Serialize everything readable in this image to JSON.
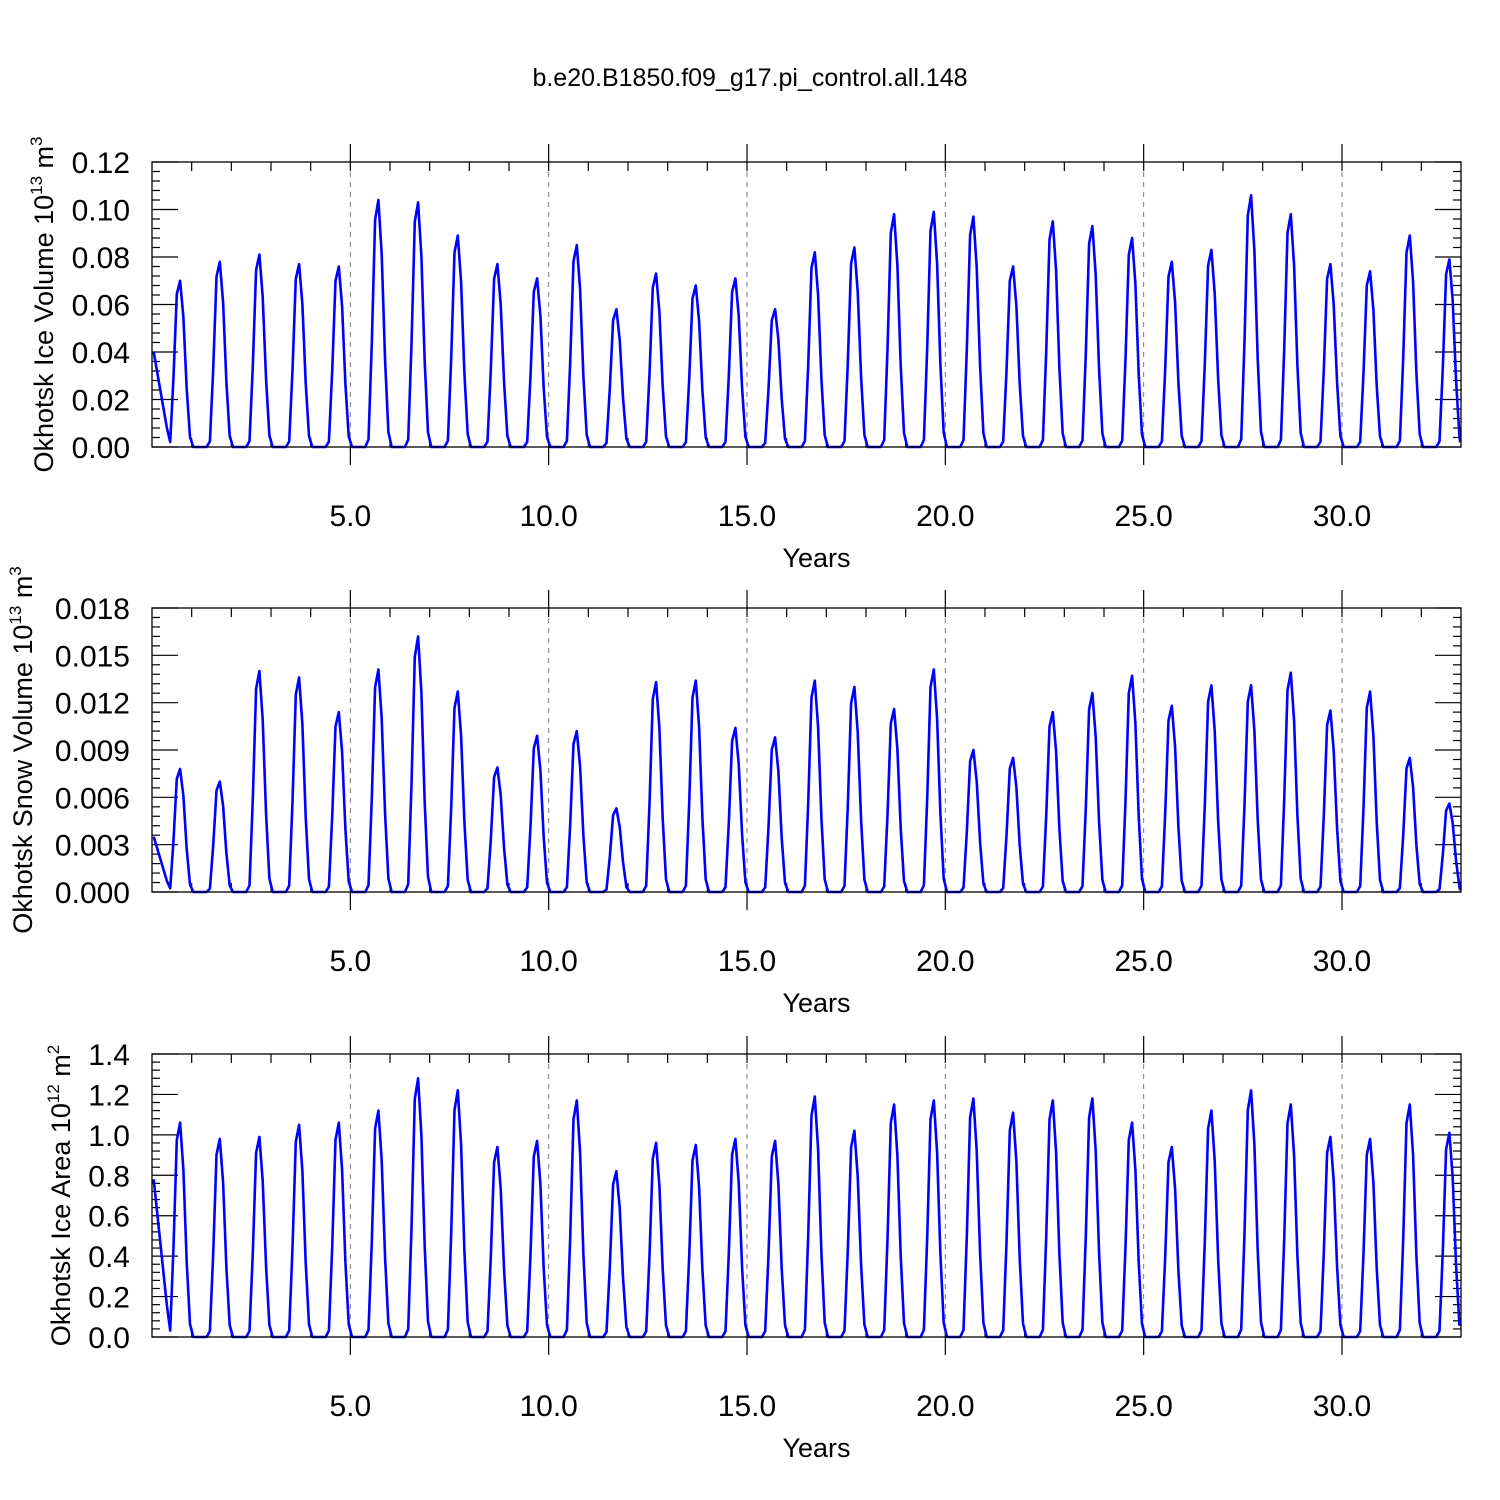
{
  "title": "b.e20.B1850.f09_g17.pi_control.all.148",
  "chart_data": [
    {
      "type": "line",
      "ylabel": "Okhotsk Ice Volume 10",
      "ylabel_exp": "13",
      "ylabel_unit": " m",
      "ylabel_unit_exp": "3",
      "xlabel": "Years",
      "xlim": [
        0.0,
        33.0
      ],
      "ylim": [
        0.0,
        0.12
      ],
      "xticks": [
        5.0,
        10.0,
        15.0,
        20.0,
        25.0,
        30.0
      ],
      "xtick_labels": [
        "5.0",
        "10.0",
        "15.0",
        "20.0",
        "25.0",
        "30.0"
      ],
      "yticks": [
        0.0,
        0.02,
        0.04,
        0.06,
        0.08,
        0.1,
        0.12
      ],
      "ytick_labels": [
        "0.00",
        "0.02",
        "0.04",
        "0.06",
        "0.08",
        "0.10",
        "0.12"
      ],
      "grid": "vertical dashed at labeled years",
      "series_color": "#0000ff",
      "annual_peaks": [
        0.07,
        0.078,
        0.081,
        0.077,
        0.076,
        0.104,
        0.103,
        0.089,
        0.077,
        0.071,
        0.085,
        0.058,
        0.073,
        0.068,
        0.071,
        0.058,
        0.082,
        0.084,
        0.098,
        0.099,
        0.097,
        0.076,
        0.095,
        0.093,
        0.088,
        0.078,
        0.083,
        0.106,
        0.098,
        0.077,
        0.074,
        0.089,
        0.079
      ],
      "start_value": 0.04,
      "end_value": 0.002
    },
    {
      "type": "line",
      "ylabel": "Okhotsk Snow Volume 10",
      "ylabel_exp": "13",
      "ylabel_unit": " m",
      "ylabel_unit_exp": "3",
      "xlabel": "Years",
      "xlim": [
        0.0,
        33.0
      ],
      "ylim": [
        0.0,
        0.018
      ],
      "xticks": [
        5.0,
        10.0,
        15.0,
        20.0,
        25.0,
        30.0
      ],
      "xtick_labels": [
        "5.0",
        "10.0",
        "15.0",
        "20.0",
        "25.0",
        "30.0"
      ],
      "yticks": [
        0.0,
        0.003,
        0.006,
        0.009,
        0.012,
        0.015,
        0.018
      ],
      "ytick_labels": [
        "0.000",
        "0.003",
        "0.006",
        "0.009",
        "0.012",
        "0.015",
        "0.018"
      ],
      "grid": "vertical dashed at labeled years",
      "series_color": "#0000ff",
      "annual_peaks": [
        0.0078,
        0.007,
        0.014,
        0.0136,
        0.0114,
        0.0141,
        0.0162,
        0.0127,
        0.0079,
        0.0099,
        0.0102,
        0.0053,
        0.0133,
        0.0134,
        0.0104,
        0.0098,
        0.0134,
        0.013,
        0.0116,
        0.0141,
        0.009,
        0.0085,
        0.0114,
        0.0126,
        0.0137,
        0.0118,
        0.0131,
        0.0131,
        0.0139,
        0.0115,
        0.0127,
        0.0085,
        0.0056
      ],
      "start_value": 0.0035,
      "end_value": 0.0001
    },
    {
      "type": "line",
      "ylabel": "Okhotsk Ice Area 10",
      "ylabel_exp": "12",
      "ylabel_unit": " m",
      "ylabel_unit_exp": "2",
      "xlabel": "Years",
      "xlim": [
        0.0,
        33.0
      ],
      "ylim": [
        0.0,
        1.4
      ],
      "xticks": [
        5.0,
        10.0,
        15.0,
        20.0,
        25.0,
        30.0
      ],
      "xtick_labels": [
        "5.0",
        "10.0",
        "15.0",
        "20.0",
        "25.0",
        "30.0"
      ],
      "yticks": [
        0.0,
        0.2,
        0.4,
        0.6,
        0.8,
        1.0,
        1.2,
        1.4
      ],
      "ytick_labels": [
        "0.0",
        "0.2",
        "0.4",
        "0.6",
        "0.8",
        "1.0",
        "1.2",
        "1.4"
      ],
      "grid": "vertical dashed at labeled years",
      "series_color": "#0000ff",
      "annual_peaks": [
        1.06,
        0.98,
        0.99,
        1.05,
        1.06,
        1.12,
        1.28,
        1.22,
        0.94,
        0.97,
        1.17,
        0.82,
        0.96,
        0.95,
        0.98,
        0.97,
        1.19,
        1.02,
        1.15,
        1.17,
        1.18,
        1.11,
        1.17,
        1.18,
        1.06,
        0.94,
        1.12,
        1.22,
        1.15,
        0.99,
        0.98,
        1.15,
        1.01
      ],
      "start_value": 0.78,
      "end_value": 0.08
    }
  ]
}
